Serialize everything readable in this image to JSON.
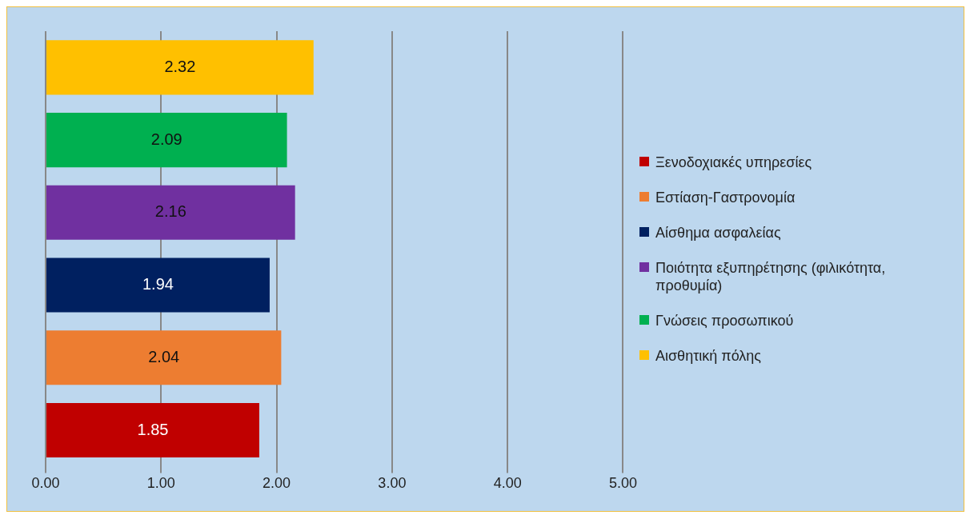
{
  "chart_data": {
    "type": "bar",
    "orientation": "horizontal",
    "categories": [
      null,
      null,
      null,
      null,
      null,
      null
    ],
    "series": [
      {
        "name": "Ξενοδοχιακές υπηρεσίες",
        "color": "#c00000",
        "values": [
          null,
          null,
          null,
          null,
          null,
          1.85
        ]
      },
      {
        "name": "Εστίαση-Γαστρονομία",
        "color": "#ed7d31",
        "values": [
          null,
          null,
          null,
          null,
          2.04,
          null
        ]
      },
      {
        "name": "Αίσθημα ασφαλείας",
        "color": "#002060",
        "values": [
          null,
          null,
          null,
          1.94,
          null,
          null
        ]
      },
      {
        "name": "Ποιότητα εξυπηρέτησης (φιλικότητα, προθυμία)",
        "color": "#7030a0",
        "values": [
          null,
          null,
          2.16,
          null,
          null,
          null
        ]
      },
      {
        "name": "Γνώσεις προσωπικού",
        "color": "#00b050",
        "values": [
          null,
          2.09,
          null,
          null,
          null,
          null
        ]
      },
      {
        "name": "Αισθητική πόλης",
        "color": "#ffc000",
        "values": [
          2.32,
          null,
          null,
          null,
          null,
          null
        ]
      }
    ],
    "xlim": [
      0,
      5
    ],
    "xticks": [
      {
        "value": 0,
        "label": "0.00"
      },
      {
        "value": 1,
        "label": "1.00"
      },
      {
        "value": 2,
        "label": "2.00"
      },
      {
        "value": 3,
        "label": "3.00"
      },
      {
        "value": 4,
        "label": "4.00"
      },
      {
        "value": 5,
        "label": "5.00"
      }
    ],
    "grid": "x",
    "legend": "right",
    "data_labels": true
  }
}
